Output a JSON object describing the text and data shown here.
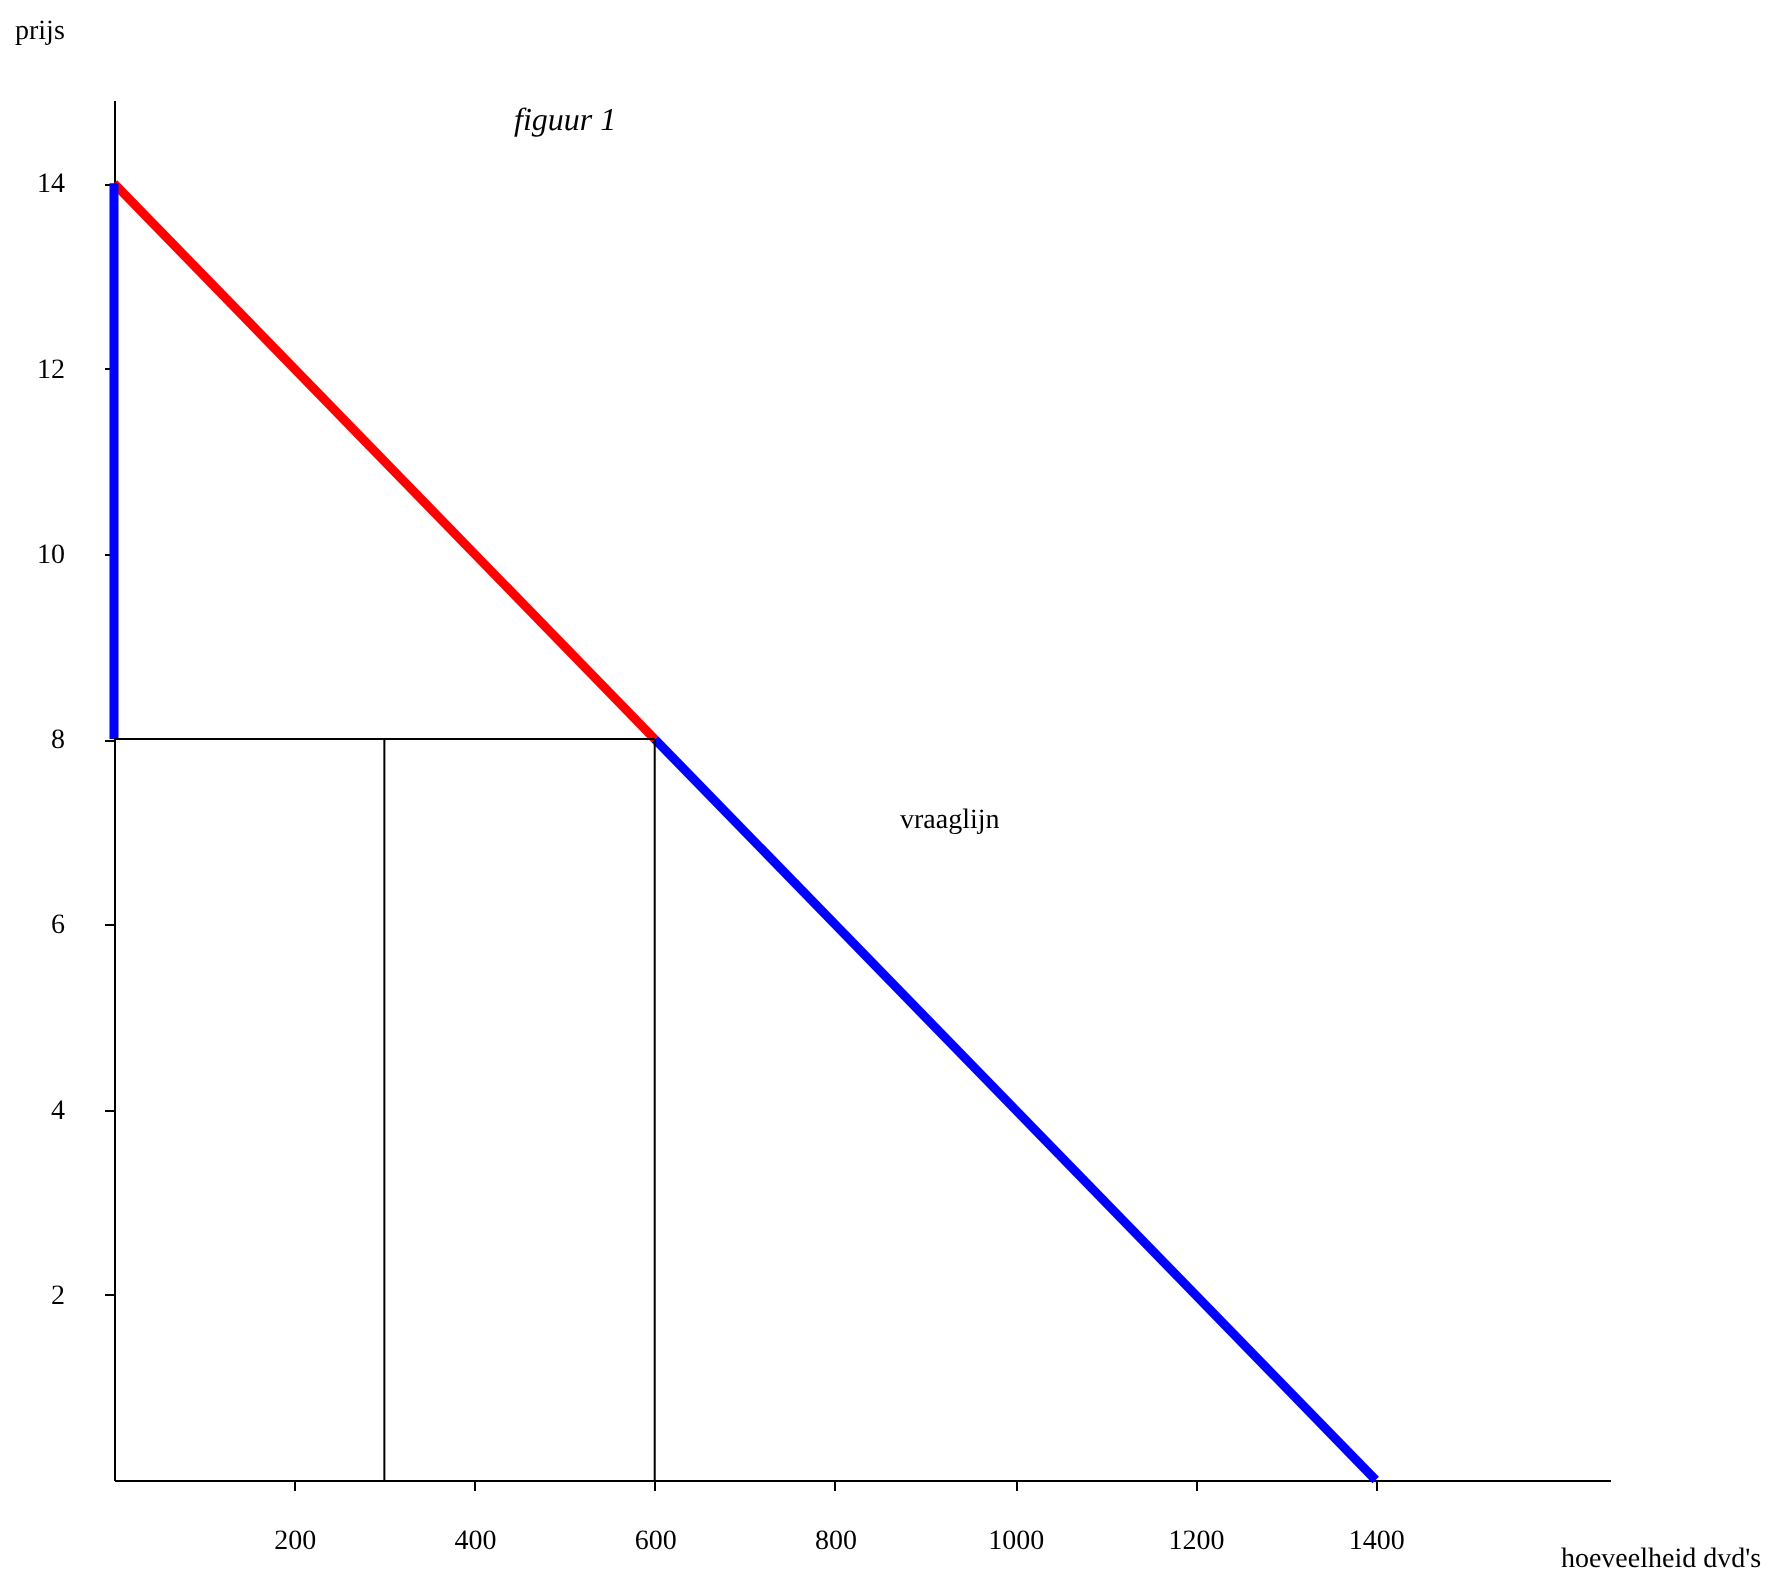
{
  "chart_data": {
    "type": "line",
    "title": "figuur 1",
    "xlabel": "hoeveelheid dvd's",
    "ylabel": "prijs",
    "xlim": [
      0,
      1660
    ],
    "ylim": [
      0,
      14.9
    ],
    "xticks": [
      200,
      400,
      600,
      800,
      1000,
      1200,
      1400
    ],
    "yticks": [
      2,
      4,
      6,
      8,
      10,
      12,
      14
    ],
    "grid": false,
    "legend": false,
    "marker": "none",
    "line_style": "solid",
    "series": [
      {
        "color": "#ff0000",
        "x": [
          0,
          600
        ],
        "values": [
          14,
          8
        ]
      },
      {
        "color": "#0000ff",
        "x": [
          600,
          1400
        ],
        "values": [
          8,
          0
        ]
      },
      {
        "color": "#0000ff",
        "x": [
          0,
          0
        ],
        "values": [
          8,
          14
        ]
      },
      {
        "color": "#000000",
        "x": [
          0,
          600
        ],
        "values": [
          8,
          8
        ]
      },
      {
        "color": "#000000",
        "x": [
          300,
          300
        ],
        "values": [
          0,
          8
        ]
      },
      {
        "color": "#000000",
        "x": [
          600,
          600
        ],
        "values": [
          0,
          8
        ]
      }
    ],
    "annotations": [
      "vraaglijn"
    ]
  }
}
